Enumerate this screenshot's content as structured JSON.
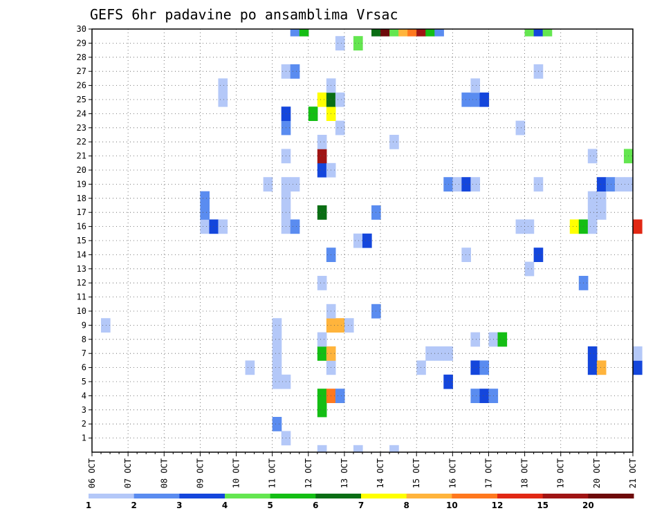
{
  "chart_data": {
    "type": "heatmap",
    "title": "GEFS 6hr padavine po ansamblima Vrsac",
    "xlabel": "",
    "ylabel": "",
    "x_ticks": [
      "06 OCT",
      "07 OCT",
      "08 OCT",
      "09 OCT",
      "10 OCT",
      "11 OCT",
      "12 OCT",
      "13 OCT",
      "14 OCT",
      "15 OCT",
      "16 OCT",
      "17 OCT",
      "18 OCT",
      "19 OCT",
      "20 OCT",
      "21 OCT"
    ],
    "x_range_days": [
      0,
      15
    ],
    "steps_per_day": 4,
    "y_ticks": [
      1,
      2,
      3,
      4,
      5,
      6,
      7,
      8,
      9,
      10,
      11,
      12,
      13,
      14,
      15,
      16,
      17,
      18,
      19,
      20,
      21,
      22,
      23,
      24,
      25,
      26,
      27,
      28,
      29,
      30
    ],
    "y_range": [
      0,
      30
    ],
    "grid": true,
    "legend": {
      "position": "bottom",
      "labels": [
        "1",
        "2",
        "3",
        "4",
        "5",
        "6",
        "7",
        "8",
        "10",
        "12",
        "15",
        "20"
      ],
      "colors": [
        "#b4c8f8",
        "#5a8cf0",
        "#1446dc",
        "#64e650",
        "#14be14",
        "#0a6e14",
        "#ffff00",
        "#ffb43c",
        "#ff781e",
        "#e12814",
        "#a01414",
        "#6e0a0a"
      ]
    },
    "cells": [
      [
        0,
        6.25,
        1
      ],
      [
        0,
        7.25,
        1
      ],
      [
        0,
        8.25,
        1
      ],
      [
        1,
        5.25,
        1
      ],
      [
        2,
        5.0,
        2
      ],
      [
        3,
        6.25,
        5
      ],
      [
        4,
        6.25,
        5
      ],
      [
        4,
        6.5,
        9
      ],
      [
        4,
        6.75,
        2
      ],
      [
        4,
        10.5,
        2
      ],
      [
        4,
        10.75,
        3
      ],
      [
        4,
        11.0,
        2
      ],
      [
        5,
        5.0,
        1
      ],
      [
        5,
        5.25,
        1
      ],
      [
        5,
        9.75,
        3
      ],
      [
        6,
        4.25,
        1
      ],
      [
        6,
        5.0,
        1
      ],
      [
        6,
        6.5,
        1
      ],
      [
        6,
        9.0,
        1
      ],
      [
        6,
        10.5,
        3
      ],
      [
        6,
        10.75,
        2
      ],
      [
        6,
        13.75,
        3
      ],
      [
        6,
        14.0,
        8
      ],
      [
        6,
        15.0,
        3
      ],
      [
        7,
        5.0,
        1
      ],
      [
        7,
        6.25,
        5
      ],
      [
        7,
        6.5,
        8
      ],
      [
        7,
        9.25,
        1
      ],
      [
        7,
        9.5,
        1
      ],
      [
        7,
        9.75,
        1
      ],
      [
        7,
        13.75,
        3
      ],
      [
        7,
        15.0,
        1
      ],
      [
        8,
        5.0,
        1
      ],
      [
        8,
        6.25,
        1
      ],
      [
        8,
        10.5,
        1
      ],
      [
        8,
        11.0,
        1
      ],
      [
        8,
        11.25,
        5
      ],
      [
        9,
        0.25,
        1
      ],
      [
        9,
        5.0,
        1
      ],
      [
        9,
        6.5,
        8
      ],
      [
        9,
        6.75,
        8
      ],
      [
        9,
        7.0,
        1
      ],
      [
        10,
        6.5,
        1
      ],
      [
        10,
        7.75,
        2
      ],
      [
        12,
        6.25,
        1
      ],
      [
        12,
        13.5,
        2
      ],
      [
        13,
        12.0,
        1
      ],
      [
        14,
        6.5,
        2
      ],
      [
        14,
        10.25,
        1
      ],
      [
        14,
        12.25,
        3
      ],
      [
        15,
        7.25,
        1
      ],
      [
        15,
        7.5,
        3
      ],
      [
        16,
        3.0,
        1
      ],
      [
        16,
        3.25,
        3
      ],
      [
        16,
        3.5,
        1
      ],
      [
        16,
        5.25,
        1
      ],
      [
        16,
        5.5,
        2
      ],
      [
        16,
        11.75,
        1
      ],
      [
        16,
        12.0,
        1
      ],
      [
        16,
        13.25,
        7
      ],
      [
        16,
        13.5,
        5
      ],
      [
        16,
        13.75,
        1
      ],
      [
        16,
        15.0,
        10
      ],
      [
        17,
        3.0,
        2
      ],
      [
        17,
        5.25,
        1
      ],
      [
        17,
        6.25,
        6
      ],
      [
        17,
        7.75,
        2
      ],
      [
        17,
        13.75,
        1
      ],
      [
        17,
        14.0,
        1
      ],
      [
        18,
        3.0,
        2
      ],
      [
        18,
        5.25,
        1
      ],
      [
        18,
        13.75,
        1
      ],
      [
        18,
        14.0,
        1
      ],
      [
        19,
        4.75,
        1
      ],
      [
        19,
        5.25,
        1
      ],
      [
        19,
        5.5,
        1
      ],
      [
        19,
        9.75,
        2
      ],
      [
        19,
        10.0,
        1
      ],
      [
        19,
        10.25,
        3
      ],
      [
        19,
        10.5,
        1
      ],
      [
        19,
        12.25,
        1
      ],
      [
        19,
        14.0,
        3
      ],
      [
        19,
        14.25,
        2
      ],
      [
        19,
        14.5,
        1
      ],
      [
        19,
        14.75,
        1
      ],
      [
        20,
        6.25,
        3
      ],
      [
        20,
        6.5,
        1
      ],
      [
        21,
        5.25,
        1
      ],
      [
        21,
        6.25,
        11
      ],
      [
        21,
        13.75,
        1
      ],
      [
        21,
        14.75,
        4
      ],
      [
        22,
        6.25,
        1
      ],
      [
        22,
        8.25,
        1
      ],
      [
        23,
        5.25,
        2
      ],
      [
        23,
        6.75,
        1
      ],
      [
        23,
        11.75,
        1
      ],
      [
        24,
        5.25,
        3
      ],
      [
        24,
        6.0,
        5
      ],
      [
        24,
        6.5,
        7
      ],
      [
        25,
        3.5,
        1
      ],
      [
        25,
        6.25,
        7
      ],
      [
        25,
        6.5,
        6
      ],
      [
        25,
        6.75,
        1
      ],
      [
        25,
        10.25,
        2
      ],
      [
        25,
        10.5,
        2
      ],
      [
        25,
        10.75,
        3
      ],
      [
        26,
        3.5,
        1
      ],
      [
        26,
        6.5,
        1
      ],
      [
        26,
        10.5,
        1
      ],
      [
        27,
        5.25,
        1
      ],
      [
        27,
        5.5,
        2
      ],
      [
        27,
        12.25,
        1
      ],
      [
        29,
        6.75,
        1
      ],
      [
        29,
        7.25,
        4
      ],
      [
        30,
        5.5,
        2
      ],
      [
        30,
        5.75,
        5
      ],
      [
        30,
        7.75,
        6
      ],
      [
        30,
        8.0,
        12
      ],
      [
        30,
        8.25,
        4
      ],
      [
        30,
        8.5,
        8
      ],
      [
        30,
        8.75,
        9
      ],
      [
        30,
        9.0,
        11
      ],
      [
        30,
        9.25,
        5
      ],
      [
        30,
        9.5,
        2
      ],
      [
        30,
        12.0,
        4
      ],
      [
        30,
        12.25,
        3
      ],
      [
        30,
        12.5,
        4
      ]
    ]
  }
}
